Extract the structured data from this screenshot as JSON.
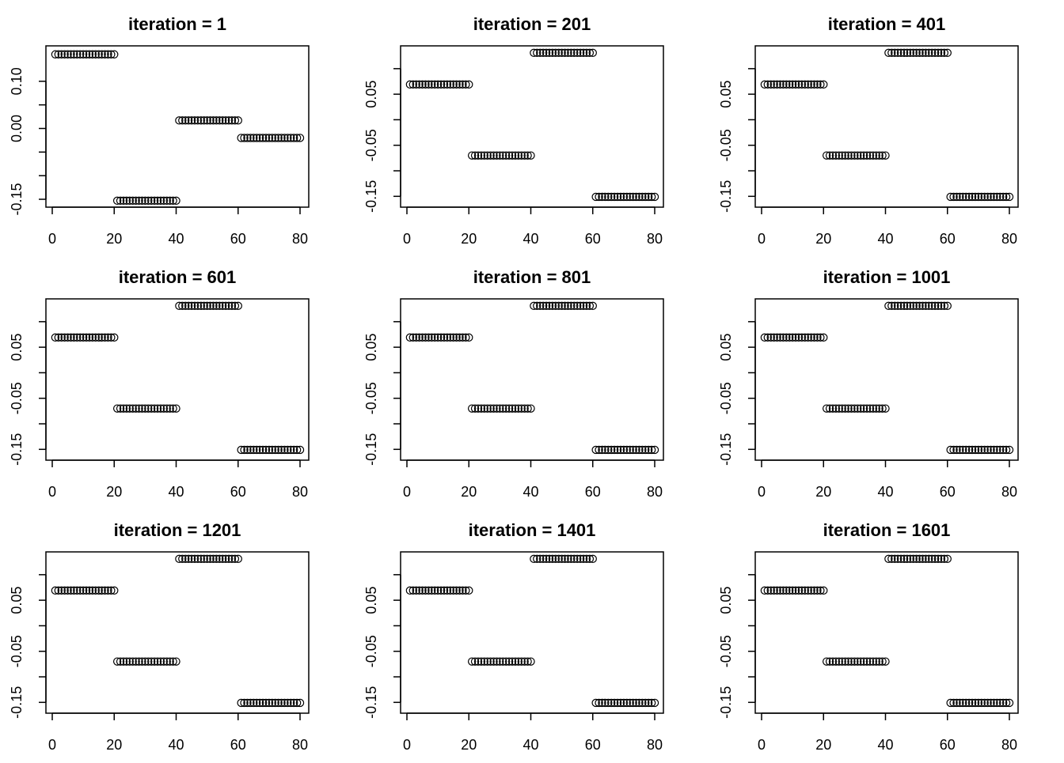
{
  "chart_data": [
    {
      "type": "scatter",
      "title": "iteration = 1",
      "xlabel": "",
      "ylabel": "",
      "xlim": [
        0,
        80
      ],
      "ylim": [
        -0.16,
        0.17
      ],
      "x_ticks": [
        "0",
        "20",
        "40",
        "60",
        "80"
      ],
      "y_ticks": [
        "-0.15",
        "0.00",
        "0.10"
      ],
      "y_tick_values": [
        -0.15,
        -0.1,
        -0.05,
        0.0,
        0.05,
        0.1
      ],
      "y_tick_labeled": [
        true,
        false,
        false,
        true,
        false,
        true
      ],
      "series": [
        {
          "name": "points",
          "segments": [
            {
              "x_from": 1,
              "x_to": 20,
              "y": 0.157
            },
            {
              "x_from": 21,
              "x_to": 40,
              "y": -0.153
            },
            {
              "x_from": 41,
              "x_to": 60,
              "y": 0.017
            },
            {
              "x_from": 61,
              "x_to": 80,
              "y": -0.02
            }
          ]
        }
      ]
    },
    {
      "type": "scatter",
      "title": "iteration = 601",
      "xlabel": "",
      "ylabel": "",
      "xlim": [
        0,
        80
      ],
      "ylim": [
        -0.165,
        0.14
      ],
      "x_ticks": [
        "0",
        "20",
        "40",
        "60",
        "80"
      ],
      "y_ticks": [
        "-0.15",
        "-0.05",
        "0.05"
      ],
      "y_tick_values": [
        -0.15,
        -0.1,
        -0.05,
        0.0,
        0.05,
        0.1
      ],
      "y_tick_labeled": [
        true,
        false,
        true,
        false,
        true,
        false
      ],
      "series": [
        {
          "name": "points",
          "segments": [
            {
              "x_from": 1,
              "x_to": 20,
              "y": 0.069
            },
            {
              "x_from": 21,
              "x_to": 40,
              "y": -0.07
            },
            {
              "x_from": 41,
              "x_to": 60,
              "y": 0.131
            },
            {
              "x_from": 61,
              "x_to": 80,
              "y": -0.151
            }
          ]
        }
      ]
    },
    {
      "type": "scatter",
      "title": "iteration = 1201",
      "xlabel": "",
      "ylabel": "",
      "xlim": [
        0,
        80
      ],
      "ylim": [
        -0.165,
        0.14
      ],
      "x_ticks": [
        "0",
        "20",
        "40",
        "60",
        "80"
      ],
      "y_ticks": [
        "-0.15",
        "-0.05",
        "0.05"
      ],
      "y_tick_values": [
        -0.15,
        -0.1,
        -0.05,
        0.0,
        0.05,
        0.1
      ],
      "y_tick_labeled": [
        true,
        false,
        true,
        false,
        true,
        false
      ],
      "series": [
        {
          "name": "points",
          "segments": [
            {
              "x_from": 1,
              "x_to": 20,
              "y": 0.069
            },
            {
              "x_from": 21,
              "x_to": 40,
              "y": -0.07
            },
            {
              "x_from": 41,
              "x_to": 60,
              "y": 0.131
            },
            {
              "x_from": 61,
              "x_to": 80,
              "y": -0.151
            }
          ]
        }
      ]
    },
    {
      "type": "scatter",
      "title": "iteration = 201",
      "xlabel": "",
      "ylabel": "",
      "xlim": [
        0,
        80
      ],
      "ylim": [
        -0.165,
        0.14
      ],
      "x_ticks": [
        "0",
        "20",
        "40",
        "60",
        "80"
      ],
      "y_ticks": [
        "-0.15",
        "-0.05",
        "0.05"
      ],
      "y_tick_values": [
        -0.15,
        -0.1,
        -0.05,
        0.0,
        0.05,
        0.1
      ],
      "y_tick_labeled": [
        true,
        false,
        true,
        false,
        true,
        false
      ],
      "series": [
        {
          "name": "points",
          "segments": [
            {
              "x_from": 1,
              "x_to": 20,
              "y": 0.069
            },
            {
              "x_from": 21,
              "x_to": 40,
              "y": -0.07
            },
            {
              "x_from": 41,
              "x_to": 60,
              "y": 0.131
            },
            {
              "x_from": 61,
              "x_to": 80,
              "y": -0.151
            }
          ]
        }
      ]
    },
    {
      "type": "scatter",
      "title": "iteration = 801",
      "xlabel": "",
      "ylabel": "",
      "xlim": [
        0,
        80
      ],
      "ylim": [
        -0.165,
        0.14
      ],
      "x_ticks": [
        "0",
        "20",
        "40",
        "60",
        "80"
      ],
      "y_ticks": [
        "-0.15",
        "-0.05",
        "0.05"
      ],
      "y_tick_values": [
        -0.15,
        -0.1,
        -0.05,
        0.0,
        0.05,
        0.1
      ],
      "y_tick_labeled": [
        true,
        false,
        true,
        false,
        true,
        false
      ],
      "series": [
        {
          "name": "points",
          "segments": [
            {
              "x_from": 1,
              "x_to": 20,
              "y": 0.069
            },
            {
              "x_from": 21,
              "x_to": 40,
              "y": -0.07
            },
            {
              "x_from": 41,
              "x_to": 60,
              "y": 0.131
            },
            {
              "x_from": 61,
              "x_to": 80,
              "y": -0.151
            }
          ]
        }
      ]
    },
    {
      "type": "scatter",
      "title": "iteration = 1401",
      "xlabel": "",
      "ylabel": "",
      "xlim": [
        0,
        80
      ],
      "ylim": [
        -0.165,
        0.14
      ],
      "x_ticks": [
        "0",
        "20",
        "40",
        "60",
        "80"
      ],
      "y_ticks": [
        "-0.15",
        "-0.05",
        "0.05"
      ],
      "y_tick_values": [
        -0.15,
        -0.1,
        -0.05,
        0.0,
        0.05,
        0.1
      ],
      "y_tick_labeled": [
        true,
        false,
        true,
        false,
        true,
        false
      ],
      "series": [
        {
          "name": "points",
          "segments": [
            {
              "x_from": 1,
              "x_to": 20,
              "y": 0.069
            },
            {
              "x_from": 21,
              "x_to": 40,
              "y": -0.07
            },
            {
              "x_from": 41,
              "x_to": 60,
              "y": 0.131
            },
            {
              "x_from": 61,
              "x_to": 80,
              "y": -0.151
            }
          ]
        }
      ]
    },
    {
      "type": "scatter",
      "title": "iteration = 401",
      "xlabel": "",
      "ylabel": "",
      "xlim": [
        0,
        80
      ],
      "ylim": [
        -0.165,
        0.14
      ],
      "x_ticks": [
        "0",
        "20",
        "40",
        "60",
        "80"
      ],
      "y_ticks": [
        "-0.15",
        "-0.05",
        "0.05"
      ],
      "y_tick_values": [
        -0.15,
        -0.1,
        -0.05,
        0.0,
        0.05,
        0.1
      ],
      "y_tick_labeled": [
        true,
        false,
        true,
        false,
        true,
        false
      ],
      "series": [
        {
          "name": "points",
          "segments": [
            {
              "x_from": 1,
              "x_to": 20,
              "y": 0.069
            },
            {
              "x_from": 21,
              "x_to": 40,
              "y": -0.07
            },
            {
              "x_from": 41,
              "x_to": 60,
              "y": 0.131
            },
            {
              "x_from": 61,
              "x_to": 80,
              "y": -0.151
            }
          ]
        }
      ]
    },
    {
      "type": "scatter",
      "title": "iteration = 1001",
      "xlabel": "",
      "ylabel": "",
      "xlim": [
        0,
        80
      ],
      "ylim": [
        -0.165,
        0.14
      ],
      "x_ticks": [
        "0",
        "20",
        "40",
        "60",
        "80"
      ],
      "y_ticks": [
        "-0.15",
        "-0.05",
        "0.05"
      ],
      "y_tick_values": [
        -0.15,
        -0.1,
        -0.05,
        0.0,
        0.05,
        0.1
      ],
      "y_tick_labeled": [
        true,
        false,
        true,
        false,
        true,
        false
      ],
      "series": [
        {
          "name": "points",
          "segments": [
            {
              "x_from": 1,
              "x_to": 20,
              "y": 0.069
            },
            {
              "x_from": 21,
              "x_to": 40,
              "y": -0.07
            },
            {
              "x_from": 41,
              "x_to": 60,
              "y": 0.131
            },
            {
              "x_from": 61,
              "x_to": 80,
              "y": -0.151
            }
          ]
        }
      ]
    },
    {
      "type": "scatter",
      "title": "iteration = 1601",
      "xlabel": "",
      "ylabel": "",
      "xlim": [
        0,
        80
      ],
      "ylim": [
        -0.165,
        0.14
      ],
      "x_ticks": [
        "0",
        "20",
        "40",
        "60",
        "80"
      ],
      "y_ticks": [
        "-0.15",
        "-0.05",
        "0.05"
      ],
      "y_tick_values": [
        -0.15,
        -0.1,
        -0.05,
        0.0,
        0.05,
        0.1
      ],
      "y_tick_labeled": [
        true,
        false,
        true,
        false,
        true,
        false
      ],
      "series": [
        {
          "name": "points",
          "segments": [
            {
              "x_from": 1,
              "x_to": 20,
              "y": 0.069
            },
            {
              "x_from": 21,
              "x_to": 40,
              "y": -0.07
            },
            {
              "x_from": 41,
              "x_to": 60,
              "y": 0.131
            },
            {
              "x_from": 61,
              "x_to": 80,
              "y": -0.151
            }
          ]
        }
      ]
    }
  ]
}
